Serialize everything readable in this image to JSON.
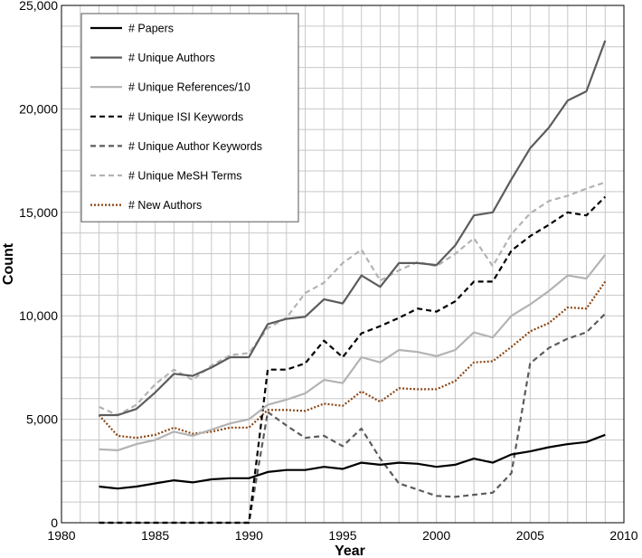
{
  "chart_data": {
    "type": "line",
    "xlabel": "Year",
    "ylabel": "Count",
    "xlim": [
      1980,
      2010
    ],
    "ylim": [
      0,
      25000
    ],
    "x_ticks": [
      "1980",
      "1985",
      "1990",
      "1995",
      "2000",
      "2005",
      "2010"
    ],
    "y_ticks": [
      "0",
      "5,000",
      "10,000",
      "15,000",
      "20,000",
      "25,000"
    ],
    "grid": true,
    "legend_position": "top-left",
    "x": [
      1982,
      1983,
      1984,
      1985,
      1986,
      1987,
      1988,
      1989,
      1990,
      1991,
      1992,
      1993,
      1994,
      1995,
      1996,
      1997,
      1998,
      1999,
      2000,
      2001,
      2002,
      2003,
      2004,
      2005,
      2006,
      2007,
      2008,
      2009
    ],
    "series": [
      {
        "name": "# Papers",
        "color": "#000000",
        "dash": "solid",
        "values": [
          1750,
          1650,
          1750,
          1900,
          2050,
          1950,
          2100,
          2150,
          2150,
          2450,
          2550,
          2550,
          2700,
          2600,
          2900,
          2800,
          2900,
          2850,
          2700,
          2800,
          3100,
          2900,
          3300,
          3450,
          3650,
          3800,
          3900,
          4250
        ]
      },
      {
        "name": "# Unique Authors",
        "color": "#5c5c5c",
        "dash": "solid",
        "values": [
          5200,
          5200,
          5500,
          6300,
          7200,
          7100,
          7500,
          8000,
          8000,
          9600,
          9850,
          9950,
          10800,
          10600,
          11950,
          11400,
          12550,
          12550,
          12450,
          13400,
          14850,
          15000,
          16600,
          18100,
          19100,
          20400,
          20850,
          23300
        ]
      },
      {
        "name": "# Unique References/10",
        "color": "#b3b3b3",
        "dash": "solid",
        "values": [
          3550,
          3500,
          3800,
          4000,
          4400,
          4200,
          4500,
          4800,
          5000,
          5700,
          5950,
          6250,
          6900,
          6750,
          8000,
          7750,
          8350,
          8250,
          8050,
          8350,
          9200,
          8950,
          10000,
          10550,
          11200,
          11950,
          11800,
          12950
        ]
      },
      {
        "name": "# Unique ISI Keywords",
        "color": "#000000",
        "dash": "6,4",
        "values": [
          0,
          0,
          0,
          0,
          0,
          0,
          0,
          0,
          0,
          7400,
          7400,
          7700,
          8800,
          8000,
          9150,
          9500,
          9900,
          10350,
          10200,
          10700,
          11650,
          11650,
          13150,
          13850,
          14400,
          15000,
          14850,
          15750
        ]
      },
      {
        "name": "# Unique Author Keywords",
        "color": "#5c5c5c",
        "dash": "6,4",
        "values": [
          0,
          0,
          0,
          0,
          0,
          0,
          0,
          0,
          0,
          5350,
          4700,
          4100,
          4200,
          3700,
          4550,
          3100,
          1900,
          1600,
          1300,
          1250,
          1350,
          1450,
          2400,
          7700,
          8450,
          8900,
          9200,
          10100
        ]
      },
      {
        "name": "# Unique MeSH Terms",
        "color": "#b3b3b3",
        "dash": "6,4",
        "values": [
          5600,
          5200,
          5700,
          6700,
          7400,
          6900,
          7600,
          8100,
          8200,
          9400,
          9900,
          11100,
          11600,
          12550,
          13200,
          11700,
          12200,
          12600,
          12400,
          13000,
          13750,
          12400,
          13950,
          14950,
          15550,
          15800,
          16150,
          16450
        ]
      },
      {
        "name": "# New Authors",
        "color": "#8b4513",
        "dash": "2,2",
        "values": [
          5200,
          4200,
          4100,
          4250,
          4600,
          4300,
          4400,
          4600,
          4600,
          5450,
          5450,
          5400,
          5750,
          5650,
          6350,
          5850,
          6500,
          6450,
          6450,
          6850,
          7750,
          7800,
          8500,
          9250,
          9650,
          10400,
          10350,
          11650
        ]
      }
    ]
  }
}
